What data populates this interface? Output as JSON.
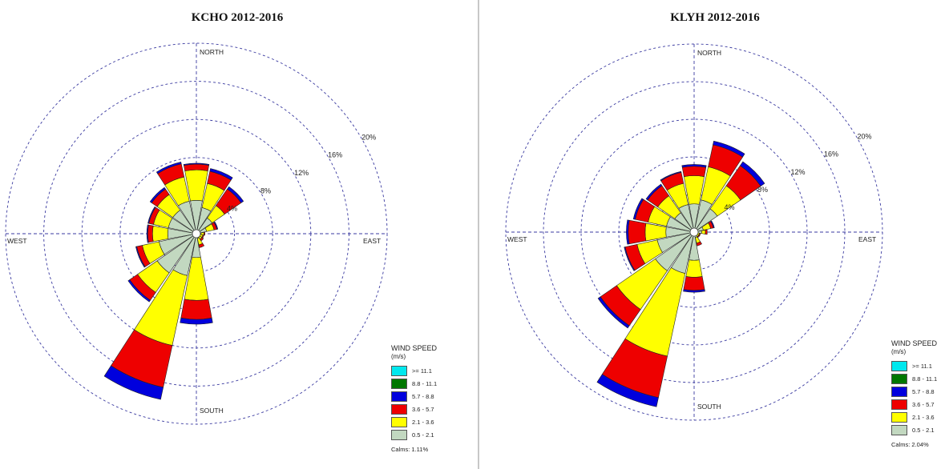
{
  "chart_data": [
    {
      "type": "wind-rose",
      "title": "KCHO 2012-2016",
      "direction_labels": {
        "north": "NORTH",
        "south": "SOUTH",
        "east": "EAST",
        "west": "WEST"
      },
      "ring_labels": [
        "4%",
        "8%",
        "12%",
        "16%",
        "20%"
      ],
      "ring_values": [
        4,
        8,
        12,
        16,
        20
      ],
      "rmax": 20,
      "legend": {
        "title": "WIND SPEED",
        "units": "(m/s)",
        "bins": [
          ">= 11.1",
          "8.8 - 11.1",
          "5.7 - 8.8",
          "3.6 - 5.7",
          "2.1 - 3.6",
          "0.5 - 2.1"
        ]
      },
      "calms": "Calms: 1.11%",
      "sectors_deg": [
        0,
        22.5,
        45,
        67.5,
        90,
        112.5,
        135,
        157.5,
        180,
        202.5,
        225,
        247.5,
        270,
        292.5,
        315,
        337.5
      ],
      "series": [
        {
          "name": "0.5 - 2.1",
          "values": [
            3.5,
            2.8,
            2.0,
            1.1,
            0.5,
            0.4,
            0.4,
            0.5,
            2.5,
            4.5,
            5.0,
            4.0,
            3.0,
            3.0,
            3.0,
            3.5
          ]
        },
        {
          "name": "2.1 - 3.6",
          "values": [
            3.2,
            2.6,
            1.6,
            0.8,
            0.3,
            0.3,
            0.3,
            0.7,
            4.5,
            7.5,
            2.5,
            1.8,
            1.6,
            1.6,
            2.0,
            2.6
          ]
        },
        {
          "name": "3.6 - 5.7",
          "values": [
            0.6,
            1.3,
            2.1,
            0.3,
            0.1,
            0.1,
            0.2,
            0.3,
            2.0,
            4.5,
            1.0,
            0.6,
            0.5,
            0.5,
            0.7,
            1.4
          ]
        },
        {
          "name": "5.7 - 8.8",
          "values": [
            0.1,
            0.3,
            0.3,
            0.1,
            0.0,
            0.0,
            0.0,
            0.0,
            0.5,
            1.3,
            0.2,
            0.1,
            0.1,
            0.1,
            0.2,
            0.2
          ]
        },
        {
          "name": "8.8 - 11.1",
          "values": [
            0,
            0,
            0,
            0,
            0,
            0,
            0,
            0,
            0,
            0,
            0,
            0,
            0,
            0,
            0,
            0
          ]
        },
        {
          "name": ">= 11.1",
          "values": [
            0,
            0,
            0,
            0,
            0,
            0,
            0,
            0,
            0,
            0,
            0,
            0,
            0,
            0,
            0,
            0
          ]
        }
      ]
    },
    {
      "type": "wind-rose",
      "title": "KLYH 2012-2016",
      "direction_labels": {
        "north": "NORTH",
        "south": "SOUTH",
        "east": "EAST",
        "west": "WEST"
      },
      "ring_labels": [
        "4%",
        "8%",
        "12%",
        "16%",
        "20%"
      ],
      "ring_values": [
        4,
        8,
        12,
        16,
        20
      ],
      "rmax": 20,
      "legend": {
        "title": "WIND SPEED",
        "units": "(m/s)",
        "bins": [
          ">= 11.1",
          "8.8 - 11.1",
          "5.7 - 8.8",
          "3.6 - 5.7",
          "2.1 - 3.6",
          "0.5 - 2.1"
        ]
      },
      "calms": "Calms: 2.04%",
      "sectors_deg": [
        0,
        22.5,
        45,
        67.5,
        90,
        112.5,
        135,
        157.5,
        180,
        202.5,
        225,
        247.5,
        270,
        292.5,
        315,
        337.5
      ],
      "series": [
        {
          "name": "0.5 - 2.1",
          "values": [
            3.0,
            3.5,
            3.0,
            1.0,
            0.8,
            0.4,
            0.4,
            0.6,
            3.0,
            4.5,
            5.0,
            4.0,
            3.0,
            3.0,
            2.5,
            3.0
          ]
        },
        {
          "name": "2.1 - 3.6",
          "values": [
            3.0,
            3.6,
            3.0,
            0.8,
            0.4,
            0.2,
            0.2,
            0.6,
            1.8,
            9.0,
            5.0,
            2.2,
            2.2,
            2.0,
            2.2,
            2.3
          ]
        },
        {
          "name": "3.6 - 5.7",
          "values": [
            1.0,
            2.4,
            2.6,
            0.3,
            0.2,
            0.1,
            0.1,
            0.3,
            1.4,
            4.5,
            2.1,
            1.3,
            1.8,
            1.4,
            1.3,
            1.2
          ]
        },
        {
          "name": "5.7 - 8.8",
          "values": [
            0.2,
            0.4,
            0.5,
            0.1,
            0.0,
            0.0,
            0.0,
            0.0,
            0.2,
            1.0,
            0.3,
            0.1,
            0.2,
            0.2,
            0.2,
            0.1
          ]
        },
        {
          "name": "8.8 - 11.1",
          "values": [
            0,
            0,
            0,
            0,
            0,
            0,
            0,
            0,
            0,
            0,
            0,
            0,
            0,
            0,
            0,
            0
          ]
        },
        {
          "name": ">= 11.1",
          "values": [
            0,
            0,
            0,
            0,
            0,
            0,
            0,
            0,
            0,
            0,
            0,
            0,
            0,
            0,
            0,
            0
          ]
        }
      ]
    }
  ],
  "colors": {
    "0.5 - 2.1": "#c2d8c0",
    "2.1 - 3.6": "#ffff00",
    "3.6 - 5.7": "#ee0000",
    "5.7 - 8.8": "#0000dd",
    "8.8 - 11.1": "#007700",
    ">= 11.1": "#00e8ee",
    "grid": "#3a3aa0",
    "divider": "#c8c8c8"
  }
}
